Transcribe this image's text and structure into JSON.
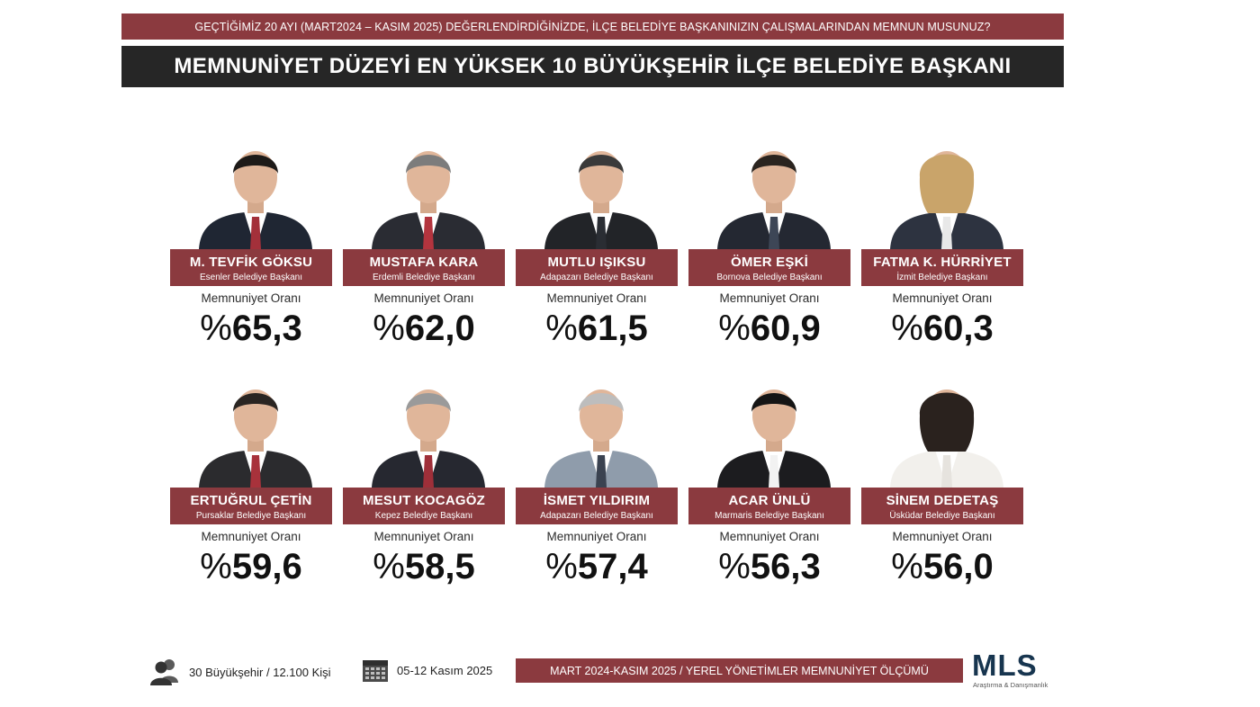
{
  "header": {
    "question": "GEÇTİĞİMİZ 20 AYI (MART2024 – KASIM 2025) DEĞERLENDİRDİĞİNİZDE, İLÇE BELEDİYE BAŞKANINIZIN ÇALIŞMALARINDAN MEMNUN MUSUNUZ?",
    "title": "MEMNUNİYET DÜZEYİ EN YÜKSEK 10 BÜYÜKŞEHİR İLÇE BELEDİYE BAŞKANI"
  },
  "rate_label": "Memnuniyet Oranı",
  "percent_symbol": "%",
  "mayors": [
    {
      "name": "M. TEVFİK GÖKSU",
      "title": "Esenler Belediye Başkanı",
      "value": "65,3",
      "suit": "#1f2633",
      "tie": "#a3303a",
      "hair": "#1d1a18"
    },
    {
      "name": "MUSTAFA KARA",
      "title": "Erdemli Belediye Başkanı",
      "value": "62,0",
      "suit": "#2a2c33",
      "tie": "#b3343e",
      "hair": "#7c7c7c"
    },
    {
      "name": "MUTLU IŞIKSU",
      "title": "Adapazarı Belediye Başkanı",
      "value": "61,5",
      "suit": "#222428",
      "tie": "#2a2d33",
      "hair": "#3a3a3a"
    },
    {
      "name": "ÖMER EŞKİ",
      "title": "Bornova Belediye Başkanı",
      "value": "60,9",
      "suit": "#242832",
      "tie": "#3d4656",
      "hair": "#2a241f"
    },
    {
      "name": "FATMA K. HÜRRİYET",
      "title": "İzmit Belediye Başkanı",
      "value": "60,3",
      "suit": "#2d3340",
      "tie": "#e8e8e8",
      "hair": "#c9a46a"
    },
    {
      "name": "ERTUĞRUL ÇETİN",
      "title": "Pursaklar Belediye Başkanı",
      "value": "59,6",
      "suit": "#2b2b2e",
      "tie": "#a8323b",
      "hair": "#2a2522"
    },
    {
      "name": "MESUT KOCAGÖZ",
      "title": "Kepez Belediye Başkanı",
      "value": "58,5",
      "suit": "#262830",
      "tie": "#9f2f39",
      "hair": "#9a9a9a"
    },
    {
      "name": "İSMET YILDIRIM",
      "title": "Adapazarı Belediye Başkanı",
      "value": "57,4",
      "suit": "#8f9cab",
      "tie": "#3a4250",
      "hair": "#bdbdbd"
    },
    {
      "name": "ACAR ÜNLÜ",
      "title": "Marmaris Belediye Başkanı",
      "value": "56,3",
      "suit": "#1c1c1f",
      "tie": "#f2f2f2",
      "hair": "#151515"
    },
    {
      "name": "SİNEM DEDETAŞ",
      "title": "Üsküdar Belediye Başkanı",
      "value": "56,0",
      "suit": "#f2f0ec",
      "tie": "#e6e3de",
      "hair": "#2a221e"
    }
  ],
  "footer": {
    "sample": "30 Büyükşehir / 12.100 Kişi",
    "dates": "05-12 Kasım 2025",
    "banner": "MART 2024-KASIM 2025 / YEREL YÖNETİMLER MEMNUNİYET ÖLÇÜMÜ",
    "logo_text": "MLS",
    "logo_sub": "Araştırma & Danışmanlık"
  },
  "colors": {
    "accent": "#8b3a3f",
    "title_bg": "#262626",
    "logo": "#17354f"
  }
}
